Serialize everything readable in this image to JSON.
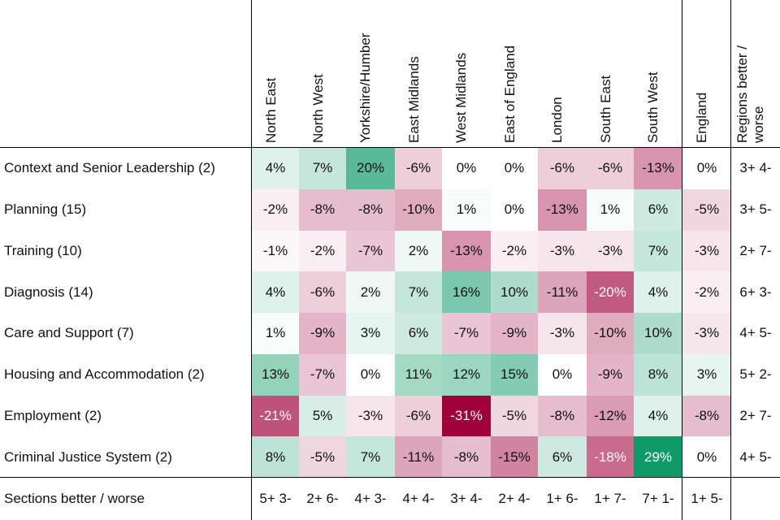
{
  "table": {
    "columns": [
      "North East",
      "North West",
      "Yorkshire/Humber",
      "East Midlands",
      "West Midlands",
      "East of England",
      "London",
      "South East",
      "South West",
      "England",
      "Regions better / worse"
    ],
    "rows": [
      {
        "label": "Context and Senior Leadership (2)",
        "cells": [
          "4%",
          "7%",
          "20%",
          "-6%",
          "0%",
          "0%",
          "-6%",
          "-6%",
          "-13%",
          "0%"
        ],
        "summary": "3+ 4-"
      },
      {
        "label": "Planning (15)",
        "cells": [
          "-2%",
          "-8%",
          "-8%",
          "-10%",
          "1%",
          "0%",
          "-13%",
          "1%",
          "6%",
          "-5%"
        ],
        "summary": "3+ 5-"
      },
      {
        "label": "Training (10)",
        "cells": [
          "-1%",
          "-2%",
          "-7%",
          "2%",
          "-13%",
          "-2%",
          "-3%",
          "-3%",
          "7%",
          "-3%"
        ],
        "summary": "2+ 7-"
      },
      {
        "label": "Diagnosis (14)",
        "cells": [
          "4%",
          "-6%",
          "2%",
          "7%",
          "16%",
          "10%",
          "-11%",
          "-20%",
          "4%",
          "-2%"
        ],
        "summary": "6+ 3-"
      },
      {
        "label": "Care and Support (7)",
        "cells": [
          "1%",
          "-9%",
          "3%",
          "6%",
          "-7%",
          "-9%",
          "-3%",
          "-10%",
          "10%",
          "-3%"
        ],
        "summary": "4+ 5-"
      },
      {
        "label": "Housing and Accommodation (2)",
        "cells": [
          "13%",
          "-7%",
          "0%",
          "11%",
          "12%",
          "15%",
          "0%",
          "-9%",
          "8%",
          "3%"
        ],
        "summary": "5+ 2-"
      },
      {
        "label": "Employment (2)",
        "cells": [
          "-21%",
          "5%",
          "-3%",
          "-6%",
          "-31%",
          "-5%",
          "-8%",
          "-12%",
          "4%",
          "-8%"
        ],
        "summary": "2+ 7-"
      },
      {
        "label": "Criminal Justice System (2)",
        "cells": [
          "8%",
          "-5%",
          "7%",
          "-11%",
          "-8%",
          "-15%",
          "6%",
          "-18%",
          "29%",
          "0%"
        ],
        "summary": "4+ 5-"
      }
    ],
    "footer": {
      "label": "Sections better / worse",
      "cells": [
        "5+ 3-",
        "2+ 6-",
        "4+ 3-",
        "4+ 4-",
        "3+ 4-",
        "2+ 4-",
        "1+ 6-",
        "1+ 7-",
        "7+ 1-",
        "1+ 5-"
      ]
    }
  }
}
